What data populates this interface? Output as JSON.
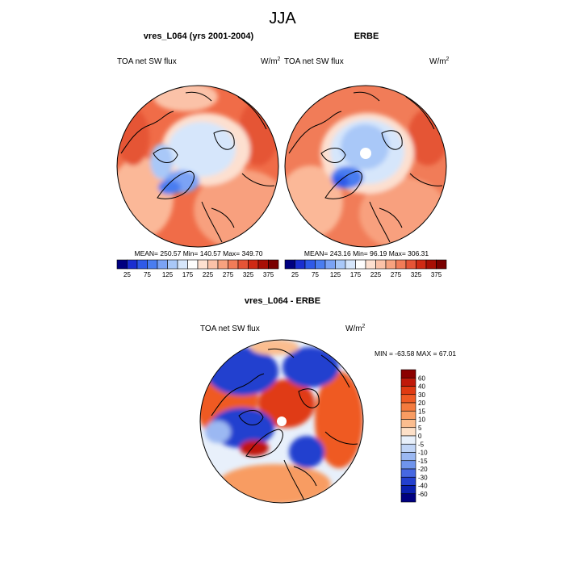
{
  "chart_data": {
    "type": "contour-map",
    "title": "JJA",
    "panels": [
      {
        "id": "model",
        "title": "vres_L064 (yrs 2001-2004)",
        "left_label": "TOA net SW flux",
        "units_base": "W/m",
        "units_exp": "2",
        "stats": "MEAN= 250.57  Min= 140.57  Max= 349.70",
        "mean": 250.57,
        "min": 140.57,
        "max": 349.7,
        "colorbar": {
          "orientation": "horizontal",
          "levels": [
            25,
            50,
            75,
            100,
            125,
            150,
            175,
            200,
            225,
            250,
            275,
            300,
            325,
            350,
            375
          ],
          "tick_labels": [
            "25",
            "75",
            "125",
            "175",
            "225",
            "275",
            "325",
            "375"
          ],
          "colors": [
            "#000080",
            "#1a2ed0",
            "#2f5ae8",
            "#4a7df0",
            "#7ba3f5",
            "#a9c8f8",
            "#d6e6fb",
            "#fdfdfd",
            "#fde0d0",
            "#fbc2a8",
            "#f7a27f",
            "#f17c58",
            "#e55436",
            "#cf2a14",
            "#a80f05",
            "#7a0000"
          ]
        }
      },
      {
        "id": "obs",
        "title": "ERBE",
        "left_label": "TOA net SW flux",
        "units_base": "W/m",
        "units_exp": "2",
        "stats": "MEAN= 243.16  Min=  96.19  Max= 306.31",
        "mean": 243.16,
        "min": 96.19,
        "max": 306.31,
        "colorbar": {
          "orientation": "horizontal",
          "levels": [
            25,
            50,
            75,
            100,
            125,
            150,
            175,
            200,
            225,
            250,
            275,
            300,
            325,
            350,
            375
          ],
          "tick_labels": [
            "25",
            "75",
            "125",
            "175",
            "225",
            "275",
            "325",
            "375"
          ],
          "colors": [
            "#000080",
            "#1a2ed0",
            "#2f5ae8",
            "#4a7df0",
            "#7ba3f5",
            "#a9c8f8",
            "#d6e6fb",
            "#fdfdfd",
            "#fde0d0",
            "#fbc2a8",
            "#f7a27f",
            "#f17c58",
            "#e55436",
            "#cf2a14",
            "#a80f05",
            "#7a0000"
          ]
        }
      },
      {
        "id": "diff",
        "title": "vres_L064 - ERBE",
        "left_label": "TOA net SW flux",
        "units_base": "W/m",
        "units_exp": "2",
        "stats": "MIN = -63.58 MAX =  67.01",
        "min": -63.58,
        "max": 67.01,
        "colorbar": {
          "orientation": "vertical",
          "levels": [
            60,
            40,
            30,
            20,
            15,
            10,
            5,
            0,
            -5,
            -10,
            -15,
            -20,
            -30,
            -40,
            -60
          ],
          "tick_labels": [
            "60",
            "40",
            "30",
            "20",
            "15",
            "10",
            "5",
            "0",
            "-5",
            "-10",
            "-15",
            "-20",
            "-30",
            "-40",
            "-60"
          ],
          "colors": [
            "#8b0000",
            "#c0190a",
            "#e03a12",
            "#ef5a24",
            "#f47a3e",
            "#f89c62",
            "#fbbd8f",
            "#fde0c8",
            "#e8f0fb",
            "#c0d4f6",
            "#9bb8f2",
            "#6f94ec",
            "#4768e2",
            "#2340cf",
            "#0a20b0",
            "#000080"
          ]
        }
      }
    ]
  },
  "colors": {
    "land_outline": "#000000",
    "map_border": "#000000"
  }
}
